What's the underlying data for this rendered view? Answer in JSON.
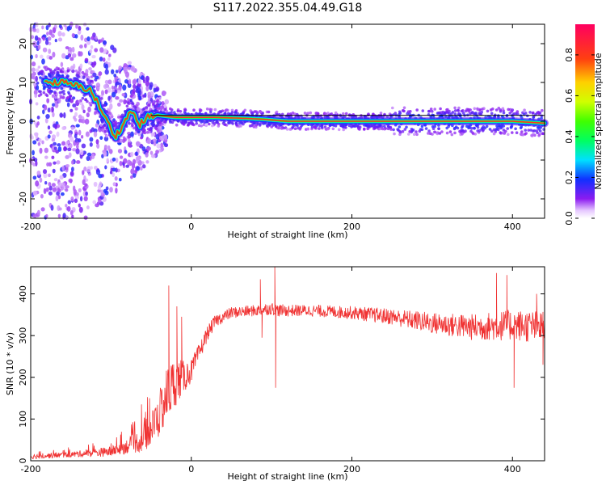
{
  "title": "S117.2022.355.04.49.G18",
  "chart_data": [
    {
      "type": "heatmap",
      "xlabel": "Height of straight line (km)",
      "ylabel": "Frequency (Hz)",
      "xlim": [
        -200,
        440
      ],
      "ylim": [
        -25,
        25
      ],
      "x_ticks": [
        -200,
        0,
        200,
        400
      ],
      "y_ticks": [
        -20,
        -10,
        0,
        10,
        20
      ],
      "ridge": {
        "x": [
          -180,
          -160,
          -140,
          -125,
          -115,
          -105,
          -95,
          -85,
          -75,
          -65,
          -55,
          -40,
          -20,
          0,
          30,
          60,
          90,
          120,
          200,
          300,
          400,
          440
        ],
        "y": [
          10,
          10,
          9,
          8,
          4,
          0,
          -4,
          -1,
          3,
          -1,
          1,
          1.5,
          1,
          1,
          1,
          0.8,
          0.5,
          0,
          0,
          0,
          0,
          -0.5
        ]
      },
      "reference_line": {
        "x": [
          -50,
          440
        ],
        "y": [
          1.5,
          1.5
        ]
      },
      "colorbar": {
        "label": "Normalized spectral amplitude",
        "range": [
          0,
          0.95
        ],
        "ticks": [
          0,
          0.2,
          0.4,
          0.6,
          0.8
        ]
      }
    },
    {
      "type": "line",
      "xlabel": "Height of straight line (km)",
      "ylabel": "SNR (10 * v/v)",
      "xlim": [
        -200,
        440
      ],
      "ylim": [
        0,
        465
      ],
      "x_ticks": [
        -200,
        0,
        200,
        400
      ],
      "y_ticks": [
        0,
        100,
        200,
        300,
        400
      ],
      "color": "#f03232",
      "envelope": {
        "x": [
          -200,
          -150,
          -100,
          -80,
          -60,
          -50,
          -40,
          -30,
          -20,
          -10,
          0,
          10,
          20,
          30,
          50,
          80,
          100,
          110,
          150,
          200,
          250,
          300,
          350,
          400,
          440
        ],
        "mean": [
          10,
          15,
          22,
          35,
          50,
          75,
          110,
          160,
          190,
          200,
          215,
          260,
          305,
          335,
          355,
          360,
          365,
          360,
          360,
          355,
          345,
          330,
          320,
          325,
          320
        ],
        "spread": [
          6,
          7,
          12,
          18,
          30,
          40,
          55,
          70,
          60,
          40,
          28,
          22,
          18,
          15,
          14,
          14,
          15,
          15,
          14,
          16,
          20,
          26,
          32,
          38,
          40
        ]
      },
      "spikes": [
        {
          "x": -62,
          "y": 135
        },
        {
          "x": -52,
          "y": 150
        },
        {
          "x": -28,
          "y": 420
        },
        {
          "x": -18,
          "y": 370
        },
        {
          "x": -12,
          "y": 345
        },
        {
          "x": 86,
          "y": 435
        },
        {
          "x": 104,
          "y": 465
        },
        {
          "x": 105,
          "y": 175
        },
        {
          "x": 88,
          "y": 295
        },
        {
          "x": 380,
          "y": 450
        },
        {
          "x": 393,
          "y": 445
        },
        {
          "x": 402,
          "y": 175
        },
        {
          "x": 430,
          "y": 400
        },
        {
          "x": 438,
          "y": 230
        }
      ]
    }
  ]
}
